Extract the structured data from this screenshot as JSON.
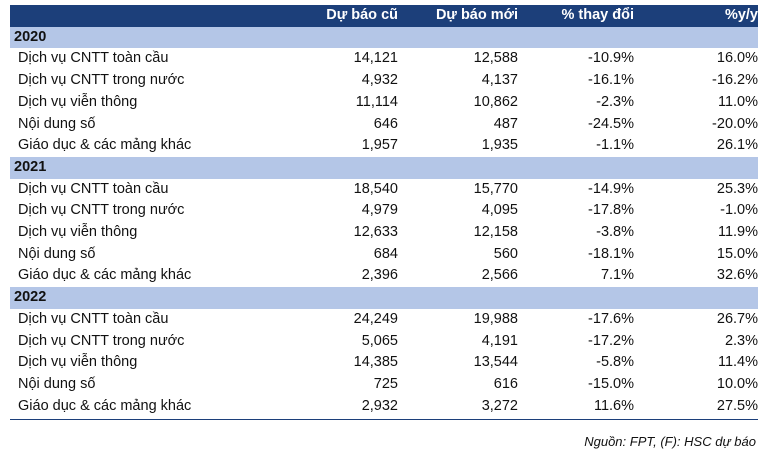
{
  "table": {
    "header": [
      "Dự báo cũ",
      "Dự báo mới",
      "% thay đổi",
      "%y/y"
    ],
    "sections": [
      {
        "title": "2020",
        "rows": [
          [
            "Dịch vụ CNTT toàn cầu",
            "14,121",
            "12,588",
            "-10.9%",
            "16.0%"
          ],
          [
            "Dịch vụ CNTT trong nước",
            "4,932",
            "4,137",
            "-16.1%",
            "-16.2%"
          ],
          [
            "Dịch vụ viễn thông",
            "11,114",
            "10,862",
            "-2.3%",
            "11.0%"
          ],
          [
            "Nội dung số",
            "646",
            "487",
            "-24.5%",
            "-20.0%"
          ],
          [
            "Giáo dục & các mảng khác",
            "1,957",
            "1,935",
            "-1.1%",
            "26.1%"
          ]
        ]
      },
      {
        "title": "2021",
        "rows": [
          [
            "Dịch vụ CNTT toàn cầu",
            "18,540",
            "15,770",
            "-14.9%",
            "25.3%"
          ],
          [
            "Dịch vụ CNTT trong nước",
            "4,979",
            "4,095",
            "-17.8%",
            "-1.0%"
          ],
          [
            "Dịch vụ viễn thông",
            "12,633",
            "12,158",
            "-3.8%",
            "11.9%"
          ],
          [
            "Nội dung số",
            "684",
            "560",
            "-18.1%",
            "15.0%"
          ],
          [
            "Giáo dục & các mảng khác",
            "2,396",
            "2,566",
            "7.1%",
            "32.6%"
          ]
        ]
      },
      {
        "title": "2022",
        "rows": [
          [
            "Dịch vụ CNTT toàn cầu",
            "24,249",
            "19,988",
            "-17.6%",
            "26.7%"
          ],
          [
            "Dịch vụ CNTT trong nước",
            "5,065",
            "4,191",
            "-17.2%",
            "2.3%"
          ],
          [
            "Dịch vụ viễn thông",
            "14,385",
            "13,544",
            "-5.8%",
            "11.4%"
          ],
          [
            "Nội dung số",
            "725",
            "616",
            "-15.0%",
            "10.0%"
          ],
          [
            "Giáo dục & các mảng khác",
            "2,932",
            "3,272",
            "11.6%",
            "27.5%"
          ]
        ]
      }
    ]
  },
  "source": "Nguồn: FPT, (F): HSC dự báo"
}
